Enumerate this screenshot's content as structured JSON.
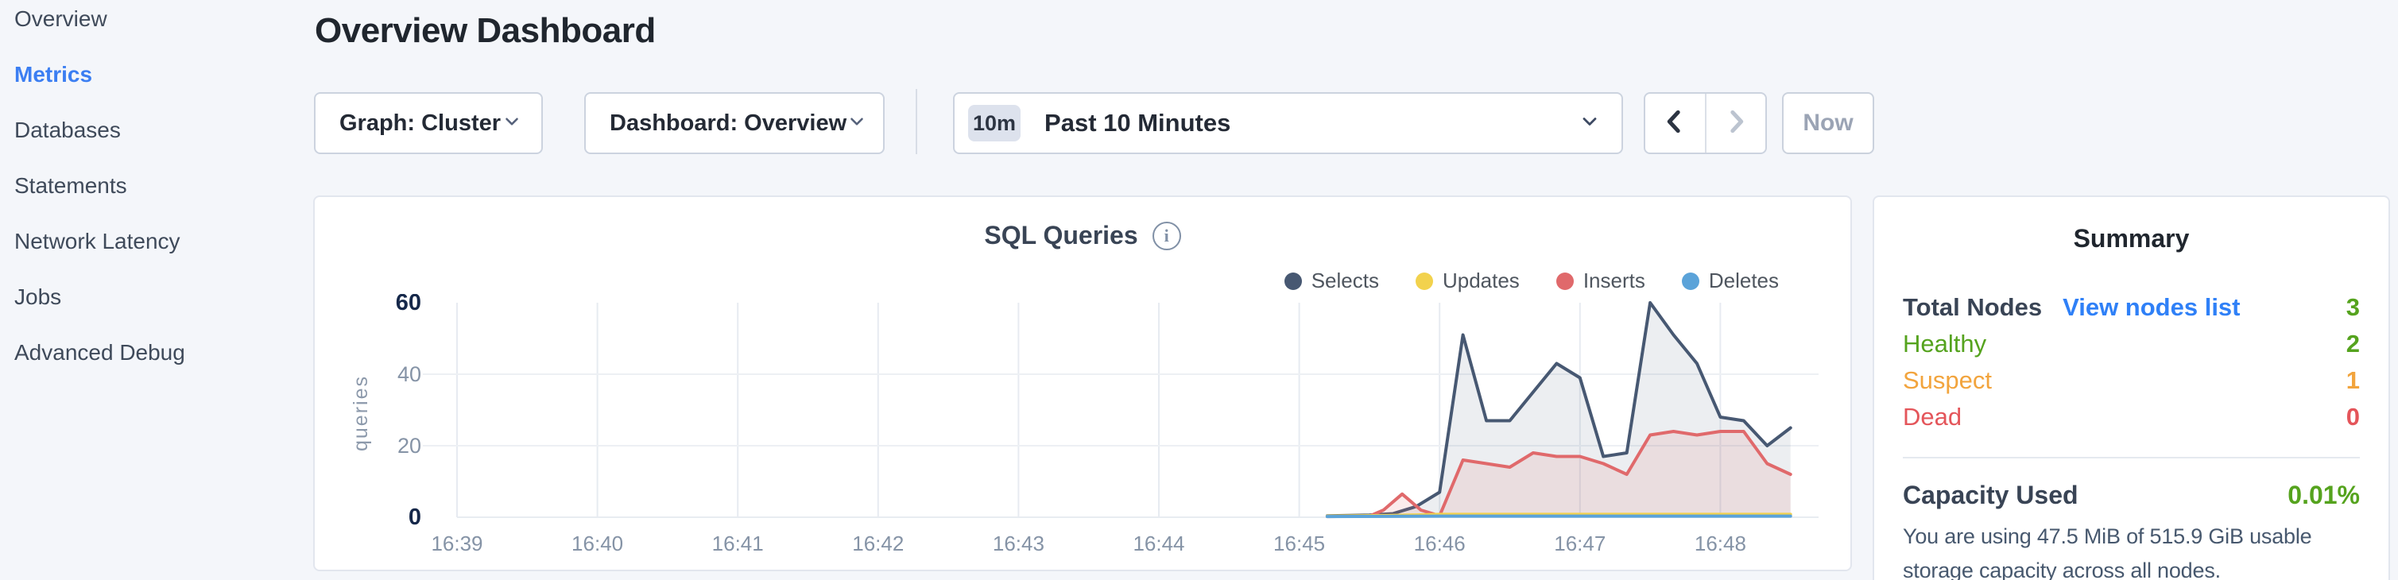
{
  "header": {
    "title": "Overview Dashboard"
  },
  "sidebar": {
    "items": [
      {
        "label": "Overview",
        "active": false
      },
      {
        "label": "Metrics",
        "active": true
      },
      {
        "label": "Databases",
        "active": false
      },
      {
        "label": "Statements",
        "active": false
      },
      {
        "label": "Network Latency",
        "active": false
      },
      {
        "label": "Jobs",
        "active": false
      },
      {
        "label": "Advanced Debug",
        "active": false
      }
    ]
  },
  "controls": {
    "graph_dropdown": {
      "label": "Graph: Cluster"
    },
    "dashboard_dropdown": {
      "label": "Dashboard: Overview"
    },
    "time_picker": {
      "badge": "10m",
      "label": "Past 10 Minutes"
    },
    "now_button": {
      "label": "Now",
      "disabled": true
    },
    "prev_enabled": true,
    "next_enabled": false
  },
  "chart_card": {
    "title": "SQL Queries",
    "info_icon": "i"
  },
  "chart_data": {
    "type": "area",
    "title": "SQL Queries",
    "xlabel": "",
    "ylabel": "queries",
    "ylim": [
      0,
      60
    ],
    "yticks": [
      0,
      20,
      40,
      60
    ],
    "xticks": [
      "16:39",
      "16:40",
      "16:41",
      "16:42",
      "16:43",
      "16:44",
      "16:45",
      "16:46",
      "16:47",
      "16:48"
    ],
    "x_unit": "seconds after 16:39:00, samples every 10s",
    "grid": true,
    "legend_position": "top-right",
    "series": [
      {
        "name": "Selects",
        "color": "#475872",
        "fill": "rgba(71,88,114,0.10)",
        "points": [
          [
            372,
            0.4
          ],
          [
            390,
            0.6
          ],
          [
            400,
            1
          ],
          [
            410,
            3
          ],
          [
            420,
            7
          ],
          [
            430,
            51
          ],
          [
            440,
            27
          ],
          [
            450,
            27
          ],
          [
            460,
            35
          ],
          [
            470,
            43
          ],
          [
            480,
            39
          ],
          [
            490,
            17
          ],
          [
            500,
            18
          ],
          [
            510,
            60
          ],
          [
            520,
            51
          ],
          [
            530,
            43
          ],
          [
            540,
            28
          ],
          [
            550,
            27
          ],
          [
            560,
            20
          ],
          [
            570,
            25
          ]
        ]
      },
      {
        "name": "Updates",
        "color": "#f2d24d",
        "fill": "rgba(242,210,77,0.10)",
        "points": [
          [
            372,
            0.3
          ],
          [
            400,
            0.5
          ],
          [
            420,
            0.8
          ],
          [
            470,
            0.8
          ],
          [
            520,
            0.8
          ],
          [
            570,
            0.8
          ]
        ]
      },
      {
        "name": "Inserts",
        "color": "#e0696b",
        "fill": "rgba(224,105,107,0.13)",
        "points": [
          [
            372,
            0.2
          ],
          [
            390,
            0.3
          ],
          [
            396,
            2
          ],
          [
            404,
            6.5
          ],
          [
            412,
            2
          ],
          [
            420,
            0.4
          ],
          [
            430,
            16
          ],
          [
            440,
            15
          ],
          [
            450,
            14
          ],
          [
            460,
            18
          ],
          [
            470,
            17
          ],
          [
            480,
            17
          ],
          [
            490,
            15
          ],
          [
            500,
            12
          ],
          [
            510,
            23
          ],
          [
            520,
            24
          ],
          [
            530,
            23
          ],
          [
            540,
            24
          ],
          [
            550,
            24
          ],
          [
            560,
            15
          ],
          [
            570,
            12
          ]
        ]
      },
      {
        "name": "Deletes",
        "color": "#5ba3d9",
        "fill": "rgba(91,163,217,0.10)",
        "points": [
          [
            372,
            0.2
          ],
          [
            420,
            0.3
          ],
          [
            470,
            0.3
          ],
          [
            520,
            0.3
          ],
          [
            570,
            0.3
          ]
        ]
      }
    ]
  },
  "summary": {
    "heading": "Summary",
    "rows": [
      {
        "label": "Total Nodes",
        "link": "View nodes list",
        "value": "3"
      },
      {
        "label": "Healthy",
        "value": "2"
      },
      {
        "label": "Suspect",
        "value": "1"
      },
      {
        "label": "Dead",
        "value": "0"
      }
    ],
    "capacity": {
      "label": "Capacity Used",
      "value": "0.01%",
      "description": "You are using 47.5 MiB of 515.9 GiB usable storage capacity across all nodes."
    }
  },
  "palette": {
    "accent_blue": "#3b7ef2",
    "link_blue": "#2f80f7",
    "status_green": "#55a31e",
    "status_orange": "#f2a43d",
    "status_red": "#e4555a",
    "page_background": "#f4f6fa",
    "card_border": "#e2e6ee"
  }
}
